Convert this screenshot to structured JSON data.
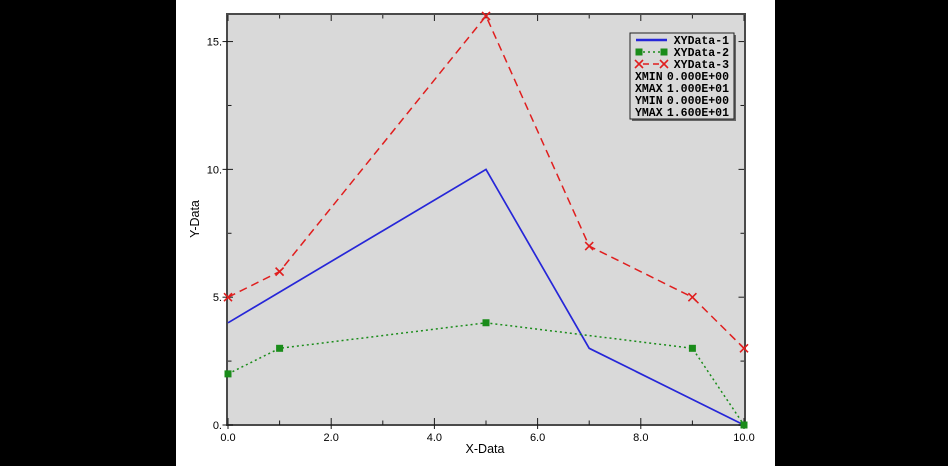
{
  "window": {
    "canvas_bg": "#000000",
    "panel_bg": "#ffffff",
    "plot_bg": "#d9d9d9",
    "plot_border_color": "#4a4a4a",
    "tick_color": "#1a1a1a",
    "text_color": "#000000",
    "legend_bg": "#d9d9d9",
    "legend_border": "#222222",
    "legend_shadow": "#666666"
  },
  "chart_data": {
    "type": "line",
    "title": "",
    "xlabel": "X-Data",
    "ylabel": "Y-Data",
    "xlim": [
      0,
      10
    ],
    "ylim": [
      0,
      16
    ],
    "grid": false,
    "x_ticks": [
      {
        "value": 0,
        "label": "0.0"
      },
      {
        "value": 2,
        "label": "2.0"
      },
      {
        "value": 4,
        "label": "4.0"
      },
      {
        "value": 6,
        "label": "6.0"
      },
      {
        "value": 8,
        "label": "8.0"
      },
      {
        "value": 10,
        "label": "10.0"
      }
    ],
    "x_minor_ticks": [
      1,
      3,
      5,
      7,
      9
    ],
    "y_ticks": [
      {
        "value": 0,
        "label": "0."
      },
      {
        "value": 5,
        "label": "5."
      },
      {
        "value": 10,
        "label": "10."
      },
      {
        "value": 15,
        "label": "15."
      }
    ],
    "y_minor_ticks": [
      2.5,
      7.5,
      12.5
    ],
    "series": [
      {
        "name": "XYData-1",
        "color": "#2626d8",
        "line_style": "solid",
        "marker": "none",
        "points": [
          [
            0,
            4
          ],
          [
            5,
            10
          ],
          [
            7,
            3
          ],
          [
            10,
            0
          ]
        ]
      },
      {
        "name": "XYData-2",
        "color": "#1a8c1a",
        "line_style": "dotted",
        "marker": "square",
        "points": [
          [
            0,
            2
          ],
          [
            1,
            3
          ],
          [
            5,
            4
          ],
          [
            9,
            3
          ],
          [
            10,
            0
          ]
        ]
      },
      {
        "name": "XYData-3",
        "color": "#e01e1e",
        "line_style": "dashed",
        "marker": "x",
        "points": [
          [
            0,
            5
          ],
          [
            1,
            6
          ],
          [
            5,
            16
          ],
          [
            7,
            7
          ],
          [
            9,
            5
          ],
          [
            10,
            3
          ]
        ]
      }
    ],
    "legend": {
      "position": "top-right",
      "stats": [
        {
          "label": "XMIN",
          "value": "0.000E+00"
        },
        {
          "label": "XMAX",
          "value": "1.000E+01"
        },
        {
          "label": "YMIN",
          "value": "0.000E+00"
        },
        {
          "label": "YMAX",
          "value": "1.600E+01"
        }
      ]
    }
  }
}
